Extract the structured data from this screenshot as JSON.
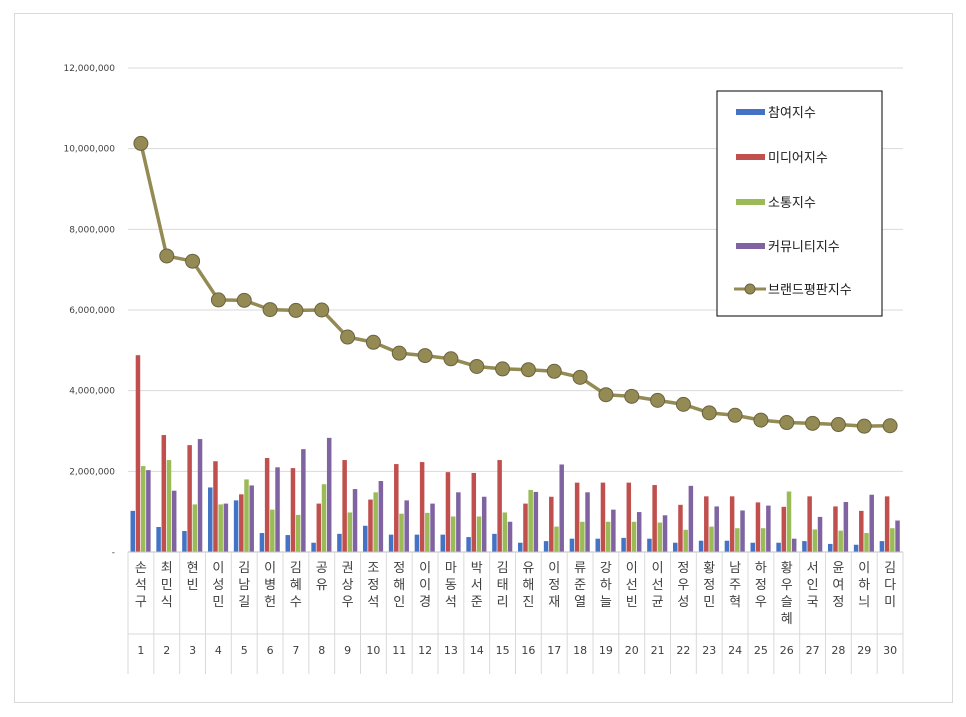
{
  "chart_data": {
    "type": "bar",
    "title": "",
    "xlabel": "",
    "ylabel": "",
    "ylim": [
      0,
      12000000
    ],
    "yticks": [
      {
        "value": 0,
        "label": "-"
      },
      {
        "value": 2000000,
        "label": "2,000,000"
      },
      {
        "value": 4000000,
        "label": "4,000,000"
      },
      {
        "value": 6000000,
        "label": "6,000,000"
      },
      {
        "value": 8000000,
        "label": "8,000,000"
      },
      {
        "value": 10000000,
        "label": "10,000,000"
      },
      {
        "value": 12000000,
        "label": "12,000,000"
      }
    ],
    "grid": true,
    "legend_position": "top-right",
    "ranks": [
      "1",
      "2",
      "3",
      "4",
      "5",
      "6",
      "7",
      "8",
      "9",
      "10",
      "11",
      "12",
      "13",
      "14",
      "15",
      "16",
      "17",
      "18",
      "19",
      "20",
      "21",
      "22",
      "23",
      "24",
      "25",
      "26",
      "27",
      "28",
      "29",
      "30"
    ],
    "categories": [
      "손석구",
      "최민식",
      "현빈",
      "이성민",
      "김남길",
      "이병헌",
      "김혜수",
      "공유",
      "권상우",
      "조정석",
      "정해인",
      "이이경",
      "마동석",
      "박서준",
      "김태리",
      "유해진",
      "이정재",
      "류준열",
      "강하늘",
      "이선빈",
      "이선균",
      "정우성",
      "황정민",
      "남주혁",
      "하정우",
      "황우슬혜",
      "서인국",
      "윤여정",
      "이하늬",
      "김다미"
    ],
    "series": [
      {
        "name": "참여지수",
        "type": "bar",
        "color": "#4472c4",
        "values": [
          1020000,
          620000,
          520000,
          1600000,
          1280000,
          470000,
          420000,
          230000,
          450000,
          650000,
          430000,
          430000,
          430000,
          370000,
          450000,
          230000,
          270000,
          330000,
          330000,
          350000,
          330000,
          230000,
          280000,
          280000,
          230000,
          230000,
          270000,
          200000,
          180000,
          270000
        ]
      },
      {
        "name": "미디어지수",
        "type": "bar",
        "color": "#c0504d",
        "values": [
          4880000,
          2900000,
          2650000,
          2250000,
          1430000,
          2330000,
          2080000,
          1200000,
          2280000,
          1300000,
          2180000,
          2230000,
          1980000,
          1960000,
          2280000,
          1200000,
          1370000,
          1720000,
          1720000,
          1720000,
          1660000,
          1170000,
          1380000,
          1380000,
          1230000,
          1120000,
          1380000,
          1130000,
          1020000,
          1380000
        ]
      },
      {
        "name": "소통지수",
        "type": "bar",
        "color": "#9bbb59",
        "values": [
          2130000,
          2280000,
          1180000,
          1180000,
          1800000,
          1050000,
          920000,
          1680000,
          980000,
          1480000,
          950000,
          970000,
          880000,
          880000,
          980000,
          1540000,
          630000,
          750000,
          750000,
          750000,
          730000,
          550000,
          630000,
          590000,
          590000,
          1500000,
          560000,
          530000,
          470000,
          590000
        ]
      },
      {
        "name": "커뮤니티지수",
        "type": "bar",
        "color": "#8064a2",
        "values": [
          2030000,
          1520000,
          2800000,
          1200000,
          1650000,
          2100000,
          2550000,
          2830000,
          1560000,
          1760000,
          1280000,
          1200000,
          1480000,
          1370000,
          750000,
          1490000,
          2170000,
          1480000,
          1050000,
          990000,
          910000,
          1640000,
          1130000,
          1030000,
          1150000,
          330000,
          870000,
          1240000,
          1420000,
          780000
        ]
      },
      {
        "name": "브랜드평판지수",
        "type": "line",
        "color": "#948a54",
        "values": [
          10130000,
          7340000,
          7210000,
          6250000,
          6240000,
          6010000,
          5990000,
          6000000,
          5330000,
          5200000,
          4930000,
          4870000,
          4790000,
          4600000,
          4540000,
          4520000,
          4480000,
          4330000,
          3900000,
          3860000,
          3760000,
          3660000,
          3450000,
          3390000,
          3270000,
          3210000,
          3190000,
          3160000,
          3120000,
          3130000
        ]
      }
    ]
  }
}
